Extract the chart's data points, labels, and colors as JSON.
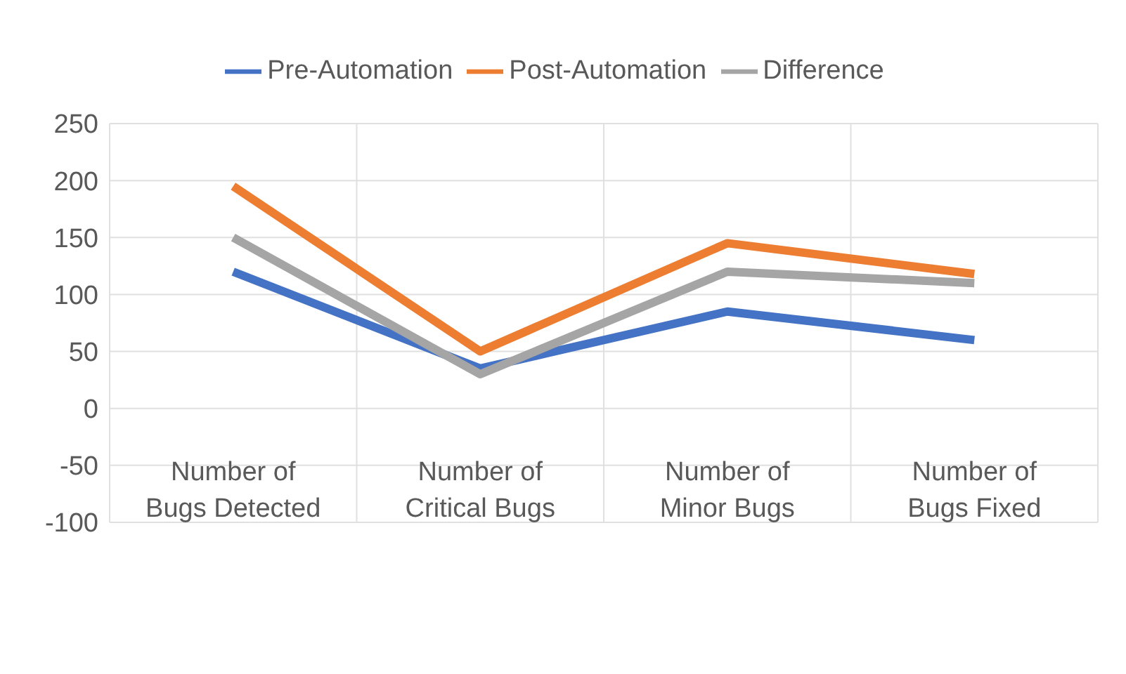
{
  "chart_data": {
    "type": "line",
    "categories": [
      "Number of Bugs Detected",
      "Number of Critical Bugs",
      "Number of Minor Bugs",
      "Number of Bugs Fixed"
    ],
    "series": [
      {
        "name": "Pre-Automation",
        "color": "#4472c4",
        "values": [
          120,
          35,
          85,
          60
        ]
      },
      {
        "name": "Post-Automation",
        "color": "#ed7d31",
        "values": [
          195,
          50,
          145,
          118
        ]
      },
      {
        "name": "Difference",
        "color": "#a5a5a5",
        "values": [
          150,
          30,
          120,
          110
        ]
      }
    ],
    "ylim": [
      -100,
      250
    ],
    "yticks": [
      -100,
      -50,
      0,
      50,
      100,
      150,
      200,
      250
    ],
    "grid": true,
    "legend": "top",
    "marker": "none",
    "line_style": "solid"
  }
}
